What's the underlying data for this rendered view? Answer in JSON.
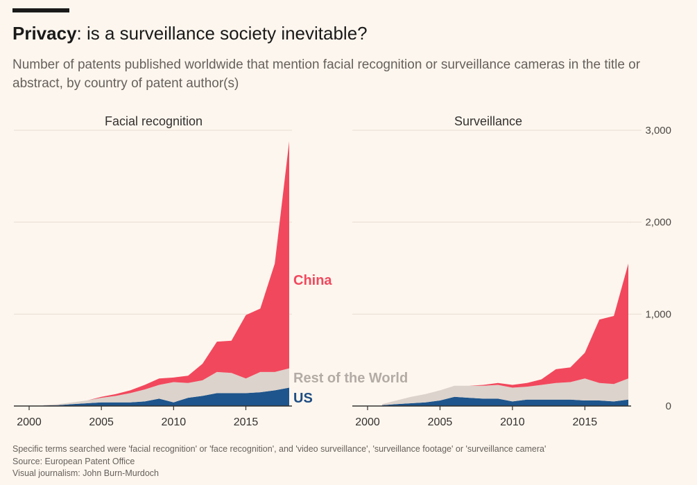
{
  "header": {
    "title_bold": "Privacy",
    "title_rest": ": is a surveillance society inevitable?",
    "subtitle": "Number of patents published worldwide that mention facial recognition or surveillance cameras in the title or abstract, by country of patent author(s)"
  },
  "footer": {
    "note": "Specific terms searched were 'facial recognition' or 'face recognition', and 'video surveillance', 'surveillance footage' or 'surveillance camera'",
    "source": "Source: European Patent Office",
    "credit": "Visual journalism: John Burn-Murdoch"
  },
  "colors": {
    "china": "#f2485d",
    "rest": "#dcd3cc",
    "us": "#1e558c",
    "rest_label": "#b3aba5",
    "us_label": "#1e4d82",
    "grid": "#e7ddd3",
    "axis": "#33302e"
  },
  "chart_data": [
    {
      "type": "area",
      "stacked": true,
      "title": "Facial recognition",
      "x": [
        2001,
        2002,
        2003,
        2004,
        2005,
        2006,
        2007,
        2008,
        2009,
        2010,
        2011,
        2012,
        2013,
        2014,
        2015,
        2016,
        2017,
        2018
      ],
      "x_ticks": [
        "2000",
        "2005",
        "2010",
        "2015"
      ],
      "ylim": [
        0,
        3000
      ],
      "series": [
        {
          "name": "US",
          "values": [
            5,
            10,
            20,
            30,
            40,
            40,
            40,
            50,
            80,
            40,
            90,
            110,
            140,
            140,
            140,
            150,
            170,
            200
          ]
        },
        {
          "name": "Rest of the World",
          "values": [
            5,
            10,
            20,
            30,
            50,
            70,
            100,
            130,
            150,
            220,
            160,
            170,
            230,
            220,
            160,
            220,
            200,
            210
          ]
        },
        {
          "name": "China",
          "values": [
            0,
            0,
            0,
            0,
            10,
            20,
            30,
            50,
            70,
            50,
            80,
            180,
            330,
            350,
            690,
            690,
            1180,
            2470
          ]
        }
      ]
    },
    {
      "type": "area",
      "stacked": true,
      "title": "Surveillance",
      "x": [
        2001,
        2002,
        2003,
        2004,
        2005,
        2006,
        2007,
        2008,
        2009,
        2010,
        2011,
        2012,
        2013,
        2014,
        2015,
        2016,
        2017,
        2018
      ],
      "x_ticks": [
        "2000",
        "2005",
        "2010",
        "2015"
      ],
      "y_ticks": [
        "0",
        "1,000",
        "2,000",
        "3,000"
      ],
      "ylim": [
        0,
        3000
      ],
      "series": [
        {
          "name": "US",
          "values": [
            10,
            20,
            30,
            40,
            60,
            100,
            90,
            80,
            80,
            50,
            70,
            70,
            70,
            70,
            60,
            60,
            50,
            70
          ]
        },
        {
          "name": "Rest of the World",
          "values": [
            10,
            40,
            70,
            90,
            110,
            120,
            130,
            140,
            150,
            150,
            140,
            160,
            180,
            190,
            240,
            190,
            190,
            230
          ]
        },
        {
          "name": "China",
          "values": [
            0,
            0,
            0,
            0,
            0,
            0,
            0,
            10,
            20,
            30,
            40,
            60,
            150,
            160,
            280,
            690,
            740,
            1250
          ]
        }
      ]
    }
  ],
  "series_labels": {
    "china": "China",
    "rest": "Rest of the World",
    "us": "US"
  }
}
